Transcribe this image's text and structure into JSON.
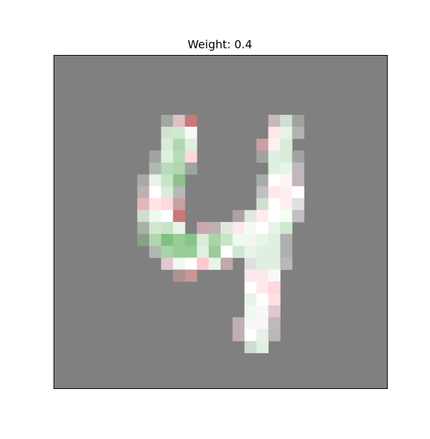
{
  "chart_data": {
    "type": "image",
    "title": "Weight: 0.4",
    "background": "#808080",
    "grid_size": 28,
    "cells": [
      [
        5,
        9,
        "#a0a8a0"
      ],
      [
        5,
        10,
        "#e0c0c4"
      ],
      [
        5,
        11,
        "#c87878"
      ],
      [
        5,
        18,
        "#c8b8b8"
      ],
      [
        5,
        19,
        "#d0e0d0"
      ],
      [
        5,
        20,
        "#a0a4a0"
      ],
      [
        6,
        9,
        "#d0e4d0"
      ],
      [
        6,
        10,
        "#d0e8d0"
      ],
      [
        6,
        11,
        "#f8f8f8"
      ],
      [
        6,
        18,
        "#ffe8ec"
      ],
      [
        6,
        19,
        "#e8f4e8"
      ],
      [
        6,
        20,
        "#b0b4b0"
      ],
      [
        7,
        9,
        "#d8ecd8"
      ],
      [
        7,
        10,
        "#b0d8b0"
      ],
      [
        7,
        11,
        "#e0f0e0"
      ],
      [
        7,
        17,
        "#c8a0a4"
      ],
      [
        7,
        18,
        "#fff0f0"
      ],
      [
        7,
        19,
        "#d8ecd8"
      ],
      [
        8,
        8,
        "#a0a4a0"
      ],
      [
        8,
        9,
        "#e0f0e0"
      ],
      [
        8,
        10,
        "#b8dcb8"
      ],
      [
        8,
        11,
        "#ffd8dc"
      ],
      [
        8,
        17,
        "#a0a4a0"
      ],
      [
        8,
        18,
        "#e0f0e0"
      ],
      [
        8,
        19,
        "#d8ecd8"
      ],
      [
        8,
        20,
        "#a0a4a0"
      ],
      [
        9,
        8,
        "#b0b8b0"
      ],
      [
        9,
        9,
        "#b8dcb8"
      ],
      [
        9,
        10,
        "#b0d8b0"
      ],
      [
        9,
        11,
        "#a0a4a0"
      ],
      [
        9,
        18,
        "#e0f0e0"
      ],
      [
        9,
        19,
        "#e8f4e8"
      ],
      [
        9,
        20,
        "#c0b8bc"
      ],
      [
        10,
        7,
        "#a8a8a8"
      ],
      [
        10,
        8,
        "#e8f4e8"
      ],
      [
        10,
        9,
        "#c8e4c8"
      ],
      [
        10,
        10,
        "#90c090"
      ],
      [
        10,
        17,
        "#a8aca8"
      ],
      [
        10,
        18,
        "#ffffff"
      ],
      [
        10,
        19,
        "#fff4f4"
      ],
      [
        10,
        20,
        "#c0b8bc"
      ],
      [
        11,
        7,
        "#c0b0b4"
      ],
      [
        11,
        8,
        "#ffffff"
      ],
      [
        11,
        9,
        "#d8ecd8"
      ],
      [
        11,
        10,
        "#b8b8b8"
      ],
      [
        11,
        17,
        "#c0c0c0"
      ],
      [
        11,
        18,
        "#ffe8ec"
      ],
      [
        11,
        19,
        "#ffeef0"
      ],
      [
        11,
        20,
        "#ffffff"
      ],
      [
        12,
        7,
        "#e0b8bc"
      ],
      [
        12,
        8,
        "#ffe4e8"
      ],
      [
        12,
        9,
        "#ffd8dc"
      ],
      [
        12,
        10,
        "#c8a0a4"
      ],
      [
        12,
        17,
        "#d0e0d0"
      ],
      [
        12,
        18,
        "#ffffff"
      ],
      [
        12,
        19,
        "#fff0f0"
      ],
      [
        12,
        20,
        "#e0e0e0"
      ],
      [
        13,
        7,
        "#d0dcd0"
      ],
      [
        13,
        8,
        "#f0f8f0"
      ],
      [
        13,
        9,
        "#ffffff"
      ],
      [
        13,
        10,
        "#c87878"
      ],
      [
        13,
        15,
        "#b0a0a4"
      ],
      [
        13,
        16,
        "#e0e8e0"
      ],
      [
        13,
        17,
        "#ffecf0"
      ],
      [
        13,
        18,
        "#ffffff"
      ],
      [
        13,
        19,
        "#f4fff4"
      ],
      [
        13,
        20,
        "#c0c0c0"
      ],
      [
        14,
        7,
        "#a8b0a8"
      ],
      [
        14,
        8,
        "#d0e8d0"
      ],
      [
        14,
        9,
        "#c8e4c8"
      ],
      [
        14,
        10,
        "#e8f4e8"
      ],
      [
        14,
        12,
        "#c8a8ac"
      ],
      [
        14,
        13,
        "#c0b0b0"
      ],
      [
        14,
        14,
        "#e0e8e0"
      ],
      [
        14,
        15,
        "#ffe8ec"
      ],
      [
        14,
        16,
        "#f4fbf4"
      ],
      [
        14,
        17,
        "#ffffff"
      ],
      [
        14,
        18,
        "#e8f4e8"
      ],
      [
        14,
        19,
        "#d0e8d0"
      ],
      [
        15,
        7,
        "#88a088"
      ],
      [
        15,
        8,
        "#b0d8b0"
      ],
      [
        15,
        9,
        "#80c080"
      ],
      [
        15,
        10,
        "#98cc98"
      ],
      [
        15,
        11,
        "#88c488"
      ],
      [
        15,
        12,
        "#d8ecd8"
      ],
      [
        15,
        13,
        "#a8d4a8"
      ],
      [
        15,
        14,
        "#c8e4c8"
      ],
      [
        15,
        15,
        "#f0f8f0"
      ],
      [
        15,
        16,
        "#f0f8f0"
      ],
      [
        15,
        17,
        "#e8f4e8"
      ],
      [
        15,
        18,
        "#e0f0e0"
      ],
      [
        15,
        19,
        "#b0b0b0"
      ],
      [
        16,
        8,
        "#b0b8b0"
      ],
      [
        16,
        9,
        "#a8d4a8"
      ],
      [
        16,
        10,
        "#98cc98"
      ],
      [
        16,
        11,
        "#98cc98"
      ],
      [
        16,
        12,
        "#e0f0e0"
      ],
      [
        16,
        13,
        "#98cc98"
      ],
      [
        16,
        14,
        "#ffffff"
      ],
      [
        16,
        15,
        "#d0e8d0"
      ],
      [
        16,
        16,
        "#e8f4e8"
      ],
      [
        16,
        17,
        "#e0f0e0"
      ],
      [
        16,
        18,
        "#e0f0e0"
      ],
      [
        16,
        19,
        "#b0b0b0"
      ],
      [
        17,
        9,
        "#e0c8cc"
      ],
      [
        17,
        10,
        "#f0f8f0"
      ],
      [
        17,
        11,
        "#ffffff"
      ],
      [
        17,
        12,
        "#ffc8d0"
      ],
      [
        17,
        13,
        "#e8f4e8"
      ],
      [
        17,
        14,
        "#c0a8ac"
      ],
      [
        17,
        16,
        "#e0e0e0"
      ],
      [
        17,
        17,
        "#e0f0e0"
      ],
      [
        17,
        18,
        "#e0f0e0"
      ],
      [
        17,
        19,
        "#b8b8b8"
      ],
      [
        18,
        10,
        "#b09090"
      ],
      [
        18,
        11,
        "#c89898"
      ],
      [
        18,
        16,
        "#ffe8ec"
      ],
      [
        18,
        17,
        "#ffe8ec"
      ],
      [
        18,
        18,
        "#f8f8f8"
      ],
      [
        19,
        16,
        "#ffffff"
      ],
      [
        19,
        17,
        "#ffe8ec"
      ],
      [
        19,
        18,
        "#ffd8dc"
      ],
      [
        20,
        16,
        "#e8f4e8"
      ],
      [
        20,
        17,
        "#ffffff"
      ],
      [
        20,
        18,
        "#ffe0e4"
      ],
      [
        21,
        16,
        "#f0f8f0"
      ],
      [
        21,
        17,
        "#f8f8f8"
      ],
      [
        21,
        18,
        "#e0c8cc"
      ],
      [
        22,
        15,
        "#c0b0b4"
      ],
      [
        22,
        16,
        "#f4f8f4"
      ],
      [
        22,
        17,
        "#f8f8f8"
      ],
      [
        22,
        18,
        "#c0b8bc"
      ],
      [
        23,
        15,
        "#c0b0b4"
      ],
      [
        23,
        16,
        "#ffffff"
      ],
      [
        23,
        17,
        "#e8f0e8"
      ],
      [
        23,
        18,
        "#b8b8b8"
      ],
      [
        24,
        16,
        "#d0dcd0"
      ],
      [
        24,
        17,
        "#e0f0e0"
      ]
    ]
  }
}
